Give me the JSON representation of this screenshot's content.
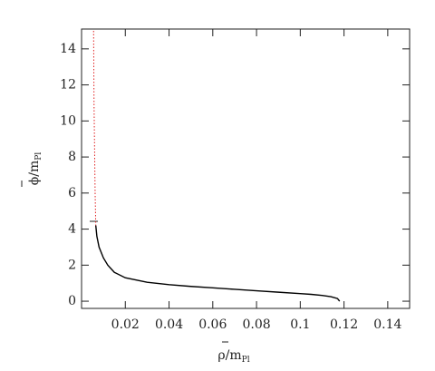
{
  "chart_data": {
    "type": "line",
    "xlabel": {
      "main": "ρ/m",
      "sub": "Pl"
    },
    "ylabel": {
      "main": "ϕ/m",
      "sub": "Pl"
    },
    "xlim": [
      0,
      0.15
    ],
    "ylim": [
      -0.4,
      15.1
    ],
    "xticks": [
      0.02,
      0.04,
      0.06,
      0.08,
      0.1,
      0.12,
      0.14
    ],
    "yticks": [
      0,
      2,
      4,
      6,
      8,
      10,
      12,
      14
    ],
    "series": [
      {
        "color": "#e02020",
        "dash": "dotted",
        "x": [
          0.0055,
          0.0056,
          0.0057,
          0.0059,
          0.006,
          0.0062,
          0.0065
        ],
        "values": [
          15,
          13,
          11,
          9,
          8,
          6,
          4.2
        ]
      },
      {
        "color": "#000000",
        "dash": "solid",
        "x": [
          0.0065,
          0.007,
          0.008,
          0.01,
          0.012,
          0.015,
          0.02,
          0.03,
          0.04,
          0.05,
          0.06,
          0.07,
          0.08,
          0.09,
          0.1,
          0.105,
          0.11,
          0.114,
          0.117,
          0.118
        ],
        "values": [
          4.2,
          3.6,
          3.0,
          2.4,
          2.0,
          1.6,
          1.3,
          1.05,
          0.92,
          0.82,
          0.74,
          0.66,
          0.58,
          0.5,
          0.42,
          0.38,
          0.32,
          0.25,
          0.15,
          0.0
        ]
      }
    ]
  }
}
